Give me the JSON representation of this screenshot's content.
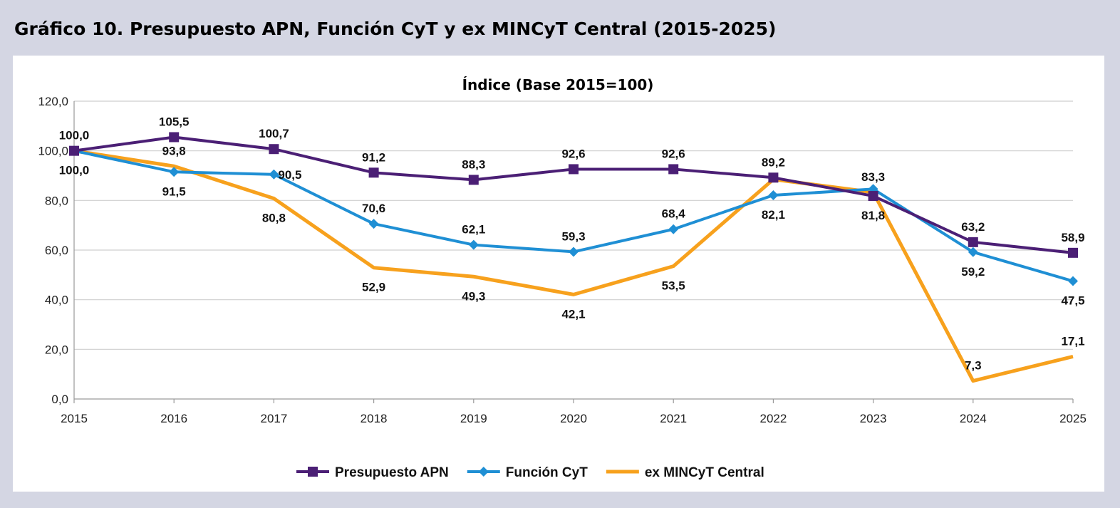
{
  "figure_title": "Gráfico 10. Presupuesto APN, Función CyT y ex MINCyT Central (2015-2025)",
  "chart_data": {
    "type": "line",
    "title": "Índice (Base 2015=100)",
    "xlabel": "",
    "ylabel": "",
    "x": [
      "2015",
      "2016",
      "2017",
      "2018",
      "2019",
      "2020",
      "2021",
      "2022",
      "2023",
      "2024",
      "2025"
    ],
    "ylim": [
      0,
      120
    ],
    "yticks": [
      0,
      20,
      40,
      60,
      80,
      100,
      120
    ],
    "ytick_labels": [
      "0,0",
      "20,0",
      "40,0",
      "60,0",
      "80,0",
      "100,0",
      "120,0"
    ],
    "grid": true,
    "legend_position": "bottom",
    "series": [
      {
        "name": "Presupuesto APN",
        "color": "#4b1f75",
        "marker": "square",
        "values": [
          100.0,
          105.5,
          100.7,
          91.2,
          88.3,
          92.6,
          92.6,
          89.2,
          81.8,
          63.2,
          58.9
        ],
        "labels": [
          "100,0",
          "105,5",
          "100,7",
          "91,2",
          "88,3",
          "92,6",
          "92,6",
          "89,2",
          "81,8",
          "63,2",
          "58,9"
        ]
      },
      {
        "name": "Función CyT",
        "color": "#1f8fd4",
        "marker": "diamond",
        "values": [
          100.0,
          91.5,
          90.5,
          70.6,
          62.1,
          59.3,
          68.4,
          82.1,
          84.6,
          59.2,
          47.5
        ],
        "labels": [
          "100,0",
          "91,5",
          "90,5",
          "70,6",
          "62,1",
          "59,3",
          "68,4",
          "82,1",
          "",
          "59,2",
          "47,5"
        ]
      },
      {
        "name": "ex MINCyT Central",
        "color": "#f7a11d",
        "marker": "none",
        "values": [
          100.0,
          93.8,
          80.8,
          52.9,
          49.3,
          42.1,
          53.5,
          88.5,
          83.3,
          7.3,
          17.1
        ],
        "labels": [
          "",
          "93,8",
          "80,8",
          "52,9",
          "49,3",
          "42,1",
          "53,5",
          "",
          "83,3",
          "7,3",
          "17,1"
        ]
      }
    ]
  }
}
